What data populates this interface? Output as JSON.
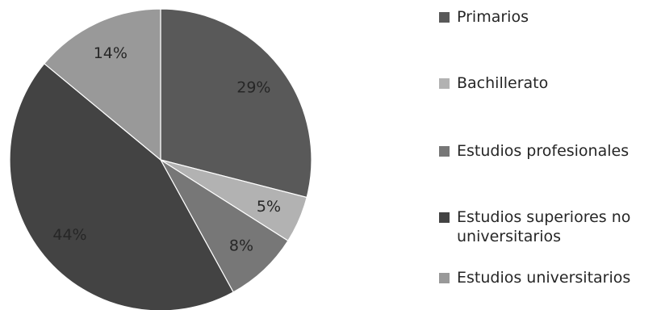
{
  "chart_data": {
    "type": "pie",
    "categories": [
      "Primarios",
      "Bachillerato",
      "Estudios profesionales",
      "Estudios superiores no universitarios",
      "Estudios universitarios"
    ],
    "values": [
      29,
      5,
      8,
      44,
      14
    ],
    "data_labels": [
      "29%",
      "5%",
      "8%",
      "44%",
      "14%"
    ],
    "colors": [
      "#595959",
      "#b2b2b2",
      "#777777",
      "#434343",
      "#999999"
    ],
    "start_angle_deg": 0,
    "direction": "clockwise",
    "legend_position": "right"
  }
}
